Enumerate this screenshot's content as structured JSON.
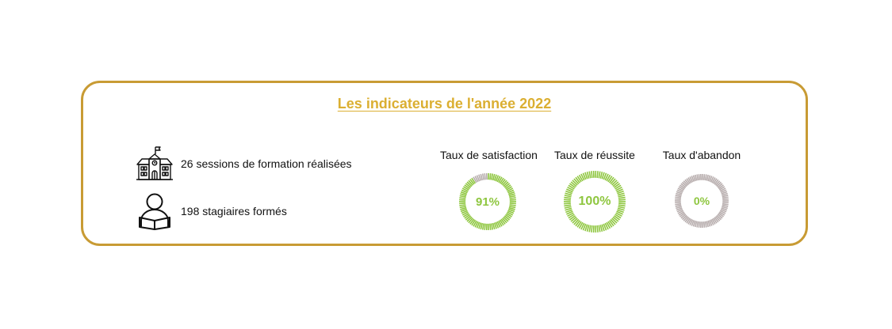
{
  "title": "Les indicateurs de l'année 2022",
  "stats": [
    {
      "text": "26 sessions de formation réalisées",
      "icon": "school-building-icon"
    },
    {
      "text": "198 stagiaires formés",
      "icon": "student-reading-icon"
    }
  ],
  "gauges": [
    {
      "label": "Taux de satisfaction",
      "value": 91,
      "display": "91%"
    },
    {
      "label": "Taux de réussite",
      "value": 100,
      "display": "100%"
    },
    {
      "label": "Taux d'abandon",
      "value": 0,
      "display": "0%"
    }
  ],
  "colors": {
    "border": "#c89b34",
    "title": "#dbaf32",
    "fill": "#8ec63f",
    "track": "#b7adad"
  }
}
